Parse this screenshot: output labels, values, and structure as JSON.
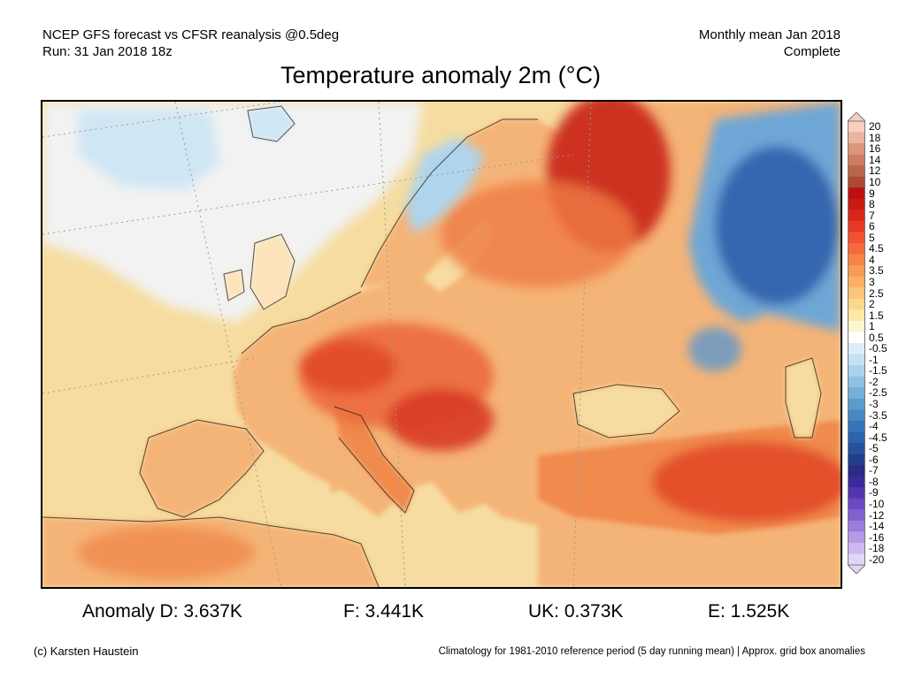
{
  "header": {
    "model_line": "NCEP GFS forecast vs CFSR reanalysis @0.5deg",
    "run_line": "Run: 31 Jan 2018 18z",
    "period_line": "Monthly mean Jan 2018",
    "status_line": "Complete"
  },
  "title": "Temperature anomaly 2m (°C)",
  "colorbar": {
    "labels": [
      "20",
      "18",
      "16",
      "14",
      "12",
      "10",
      "9",
      "8",
      "7",
      "6",
      "5",
      "4.5",
      "4",
      "3.5",
      "3",
      "2.5",
      "2",
      "1.5",
      "1",
      "0.5",
      "-0.5",
      "-1",
      "-1.5",
      "-2",
      "-2.5",
      "-3",
      "-3.5",
      "-4",
      "-4.5",
      "-5",
      "-6",
      "-7",
      "-8",
      "-9",
      "-10",
      "-12",
      "-14",
      "-16",
      "-18",
      "-20"
    ],
    "colors": [
      "#f6d0c2",
      "#eab49e",
      "#dd967e",
      "#ce7c64",
      "#bb644c",
      "#a84a36",
      "#bd1010",
      "#c91a14",
      "#d7271b",
      "#e53b26",
      "#ef5333",
      "#f46a3e",
      "#f78448",
      "#f99a55",
      "#fbb065",
      "#fcc577",
      "#fdd88a",
      "#fde8a6",
      "#fef6cf",
      "#ffffff",
      "#ddeefa",
      "#c4e2f4",
      "#aad3ec",
      "#8ec2e2",
      "#74b0d8",
      "#5b9ccd",
      "#4788c3",
      "#3874b9",
      "#2d63ad",
      "#27519c",
      "#22408a",
      "#2a2c86",
      "#3b2a9a",
      "#5236ae",
      "#6a4ac2",
      "#8160d0",
      "#9a7cdc",
      "#b499e6",
      "#cdb8ef",
      "#e2d6f6"
    ]
  },
  "stats": {
    "germany": "Anomaly D: 3.637K",
    "france": "F: 3.441K",
    "uk": "UK: 0.373K",
    "spain": "E: 1.525K"
  },
  "footer": {
    "credit": "(c) Karsten Haustein",
    "note": "Climatology for 1981-2010 reference period (5 day running mean) | Approx. grid box anomalies"
  },
  "map": {
    "region": "Europe",
    "land_fill": "#f5b477",
    "land_hot": "#ea5a36",
    "land_very_hot": "#c8281a",
    "cold_fill": "#3f7dc4",
    "sea_fill": "#f6dca0",
    "arctic_sea_fill": "#f2f2f2"
  }
}
